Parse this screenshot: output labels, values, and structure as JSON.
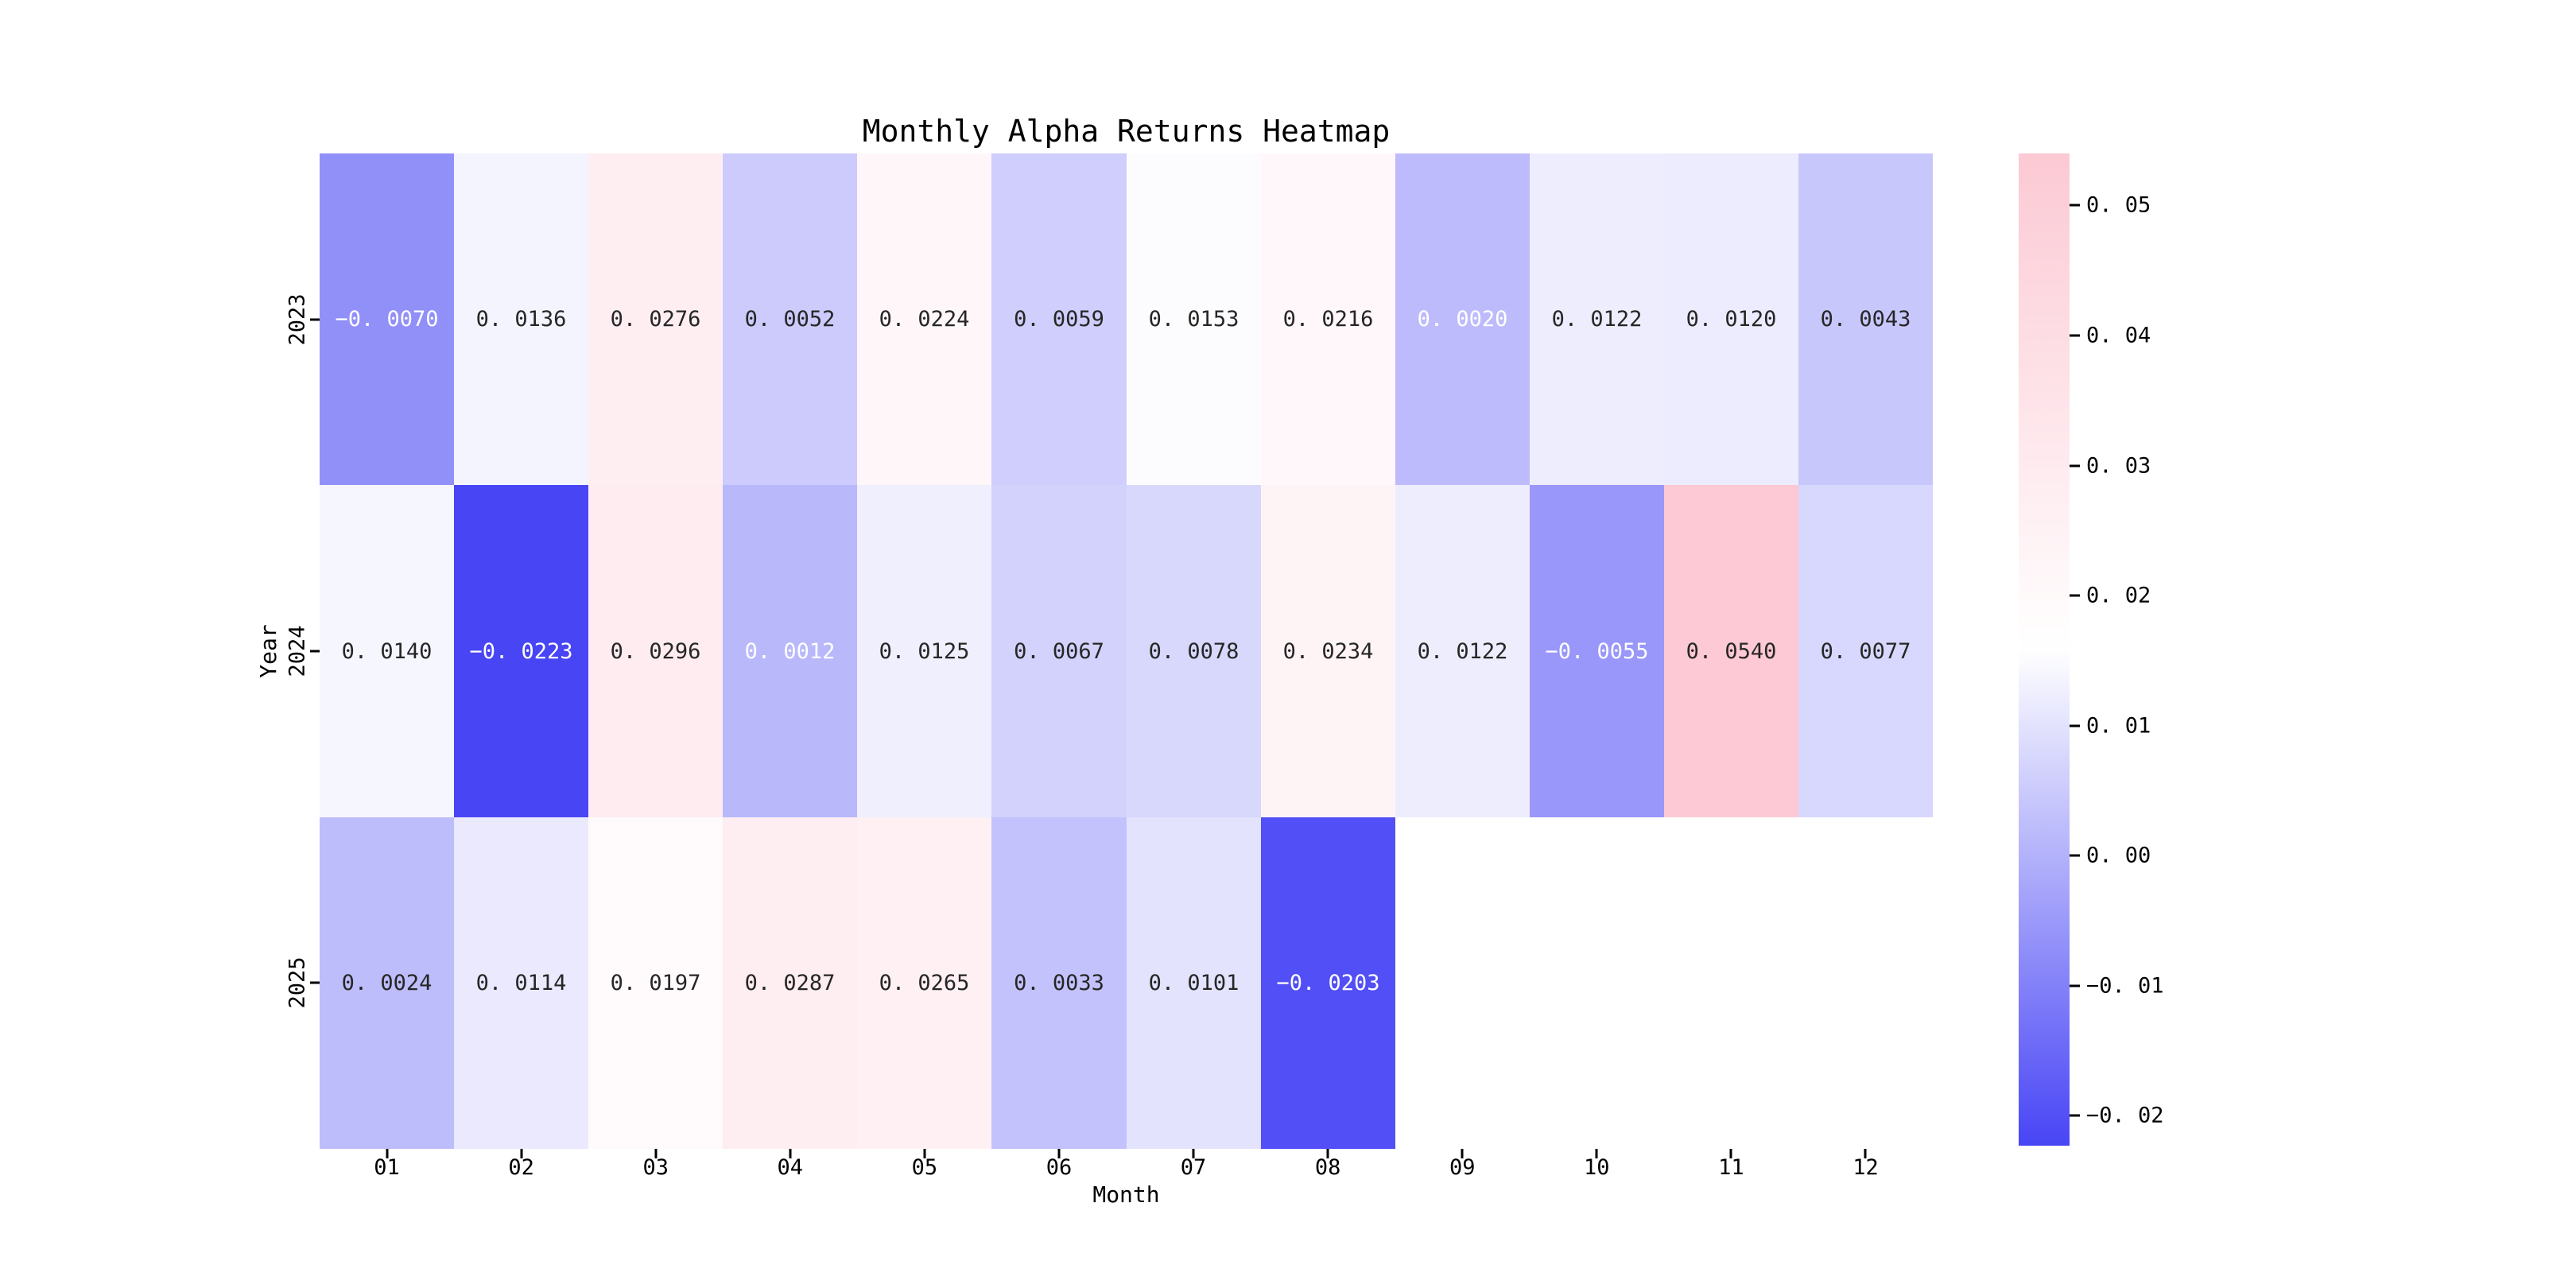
{
  "title": "Monthly Alpha Returns Heatmap",
  "chart_data": {
    "type": "heatmap",
    "title": "Monthly Alpha Returns Heatmap",
    "xlabel": "Month",
    "ylabel": "Year",
    "x_categories": [
      "01",
      "02",
      "03",
      "04",
      "05",
      "06",
      "07",
      "08",
      "09",
      "10",
      "11",
      "12"
    ],
    "y_categories": [
      "2023",
      "2024",
      "2025"
    ],
    "series": [
      {
        "name": "2023",
        "values": [
          -0.007,
          0.0136,
          0.0276,
          0.0052,
          0.0224,
          0.0059,
          0.0153,
          0.0216,
          0.002,
          0.0122,
          0.012,
          0.0043
        ]
      },
      {
        "name": "2024",
        "values": [
          0.014,
          -0.0223,
          0.0296,
          0.0012,
          0.0125,
          0.0067,
          0.0078,
          0.0234,
          0.0122,
          -0.0055,
          0.054,
          0.0077
        ]
      },
      {
        "name": "2025",
        "values": [
          0.0024,
          0.0114,
          0.0197,
          0.0287,
          0.0265,
          0.0033,
          0.0101,
          -0.0203,
          null,
          null,
          null,
          null
        ]
      }
    ],
    "annotation_decimals": 4,
    "colorbar": {
      "vmin": -0.0223,
      "vmax": 0.054,
      "ticks": [
        0.05,
        0.04,
        0.03,
        0.02,
        0.01,
        0.0,
        -0.01,
        -0.02
      ],
      "tick_decimals": 2,
      "position": "right"
    },
    "colors": {
      "low": "#4845f5",
      "mid": "#ffffff",
      "high": "#fcc9d4",
      "annotation_dark": "#262626",
      "annotation_light": "#ffffff"
    },
    "grid": false,
    "legend_position": "none"
  }
}
